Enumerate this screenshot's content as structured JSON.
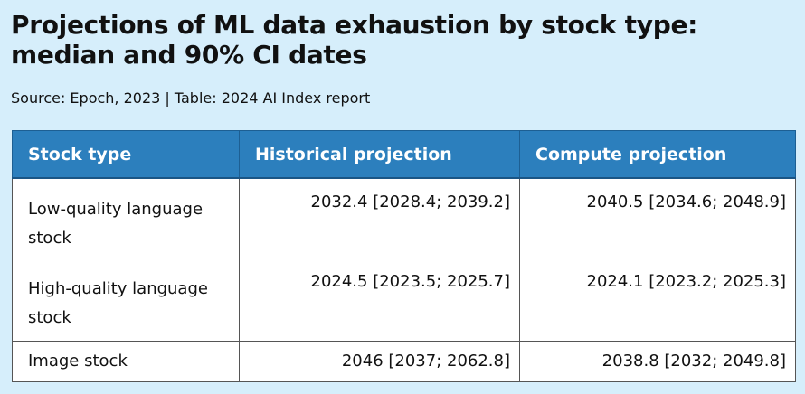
{
  "title": "Projections of ML data exhaustion by stock type: median and 90% CI dates",
  "subtitle": "Source: Epoch, 2023 | Table: 2024 AI Index report",
  "chart_data": {
    "type": "table",
    "columns": [
      "Stock type",
      "Historical projection",
      "Compute projection"
    ],
    "rows": [
      [
        "Low-quality language stock",
        "2032.4 [2028.4; 2039.2]",
        "2040.5 [2034.6; 2048.9]"
      ],
      [
        "High-quality language stock",
        "2024.5 [2023.5; 2025.7]",
        "2024.1 [2023.2; 2025.3]"
      ],
      [
        "Image stock",
        "2046 [2037; 2062.8]",
        "2038.8 [2032; 2049.8]"
      ]
    ]
  },
  "colors": {
    "background": "#d6eefb",
    "header_fill": "#2c7fbd",
    "header_text": "#ffffff",
    "cell_fill": "#ffffff",
    "border": "#555555"
  }
}
